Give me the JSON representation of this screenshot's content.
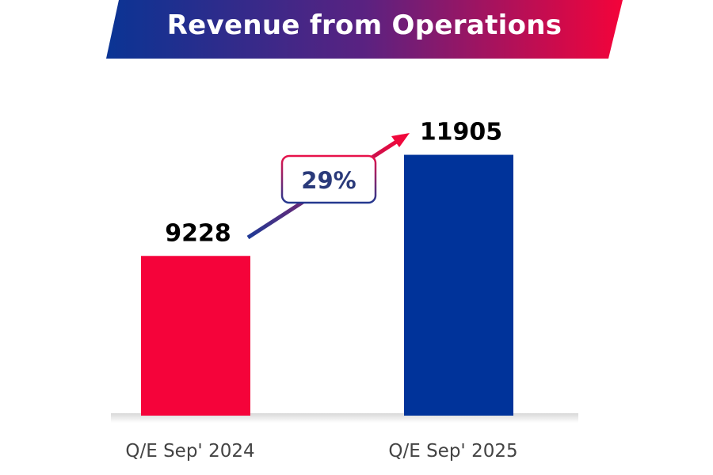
{
  "chart_data": {
    "type": "bar",
    "title": "Revenue from Operations",
    "categories": [
      "Q/E Sep' 2024",
      "Q/E Sep' 2025"
    ],
    "values": [
      9228,
      11905
    ],
    "data_labels": [
      "9228",
      "11905"
    ],
    "ylim": [
      5000,
      12000
    ],
    "grid": false,
    "growth_annotation": "29%",
    "colors": {
      "bar_2024": "#f5033a",
      "bar_2025": "#00339a",
      "banner_left": "#0a3494",
      "banner_right": "#f4033a",
      "growth_text": "#2a3a7a"
    }
  }
}
